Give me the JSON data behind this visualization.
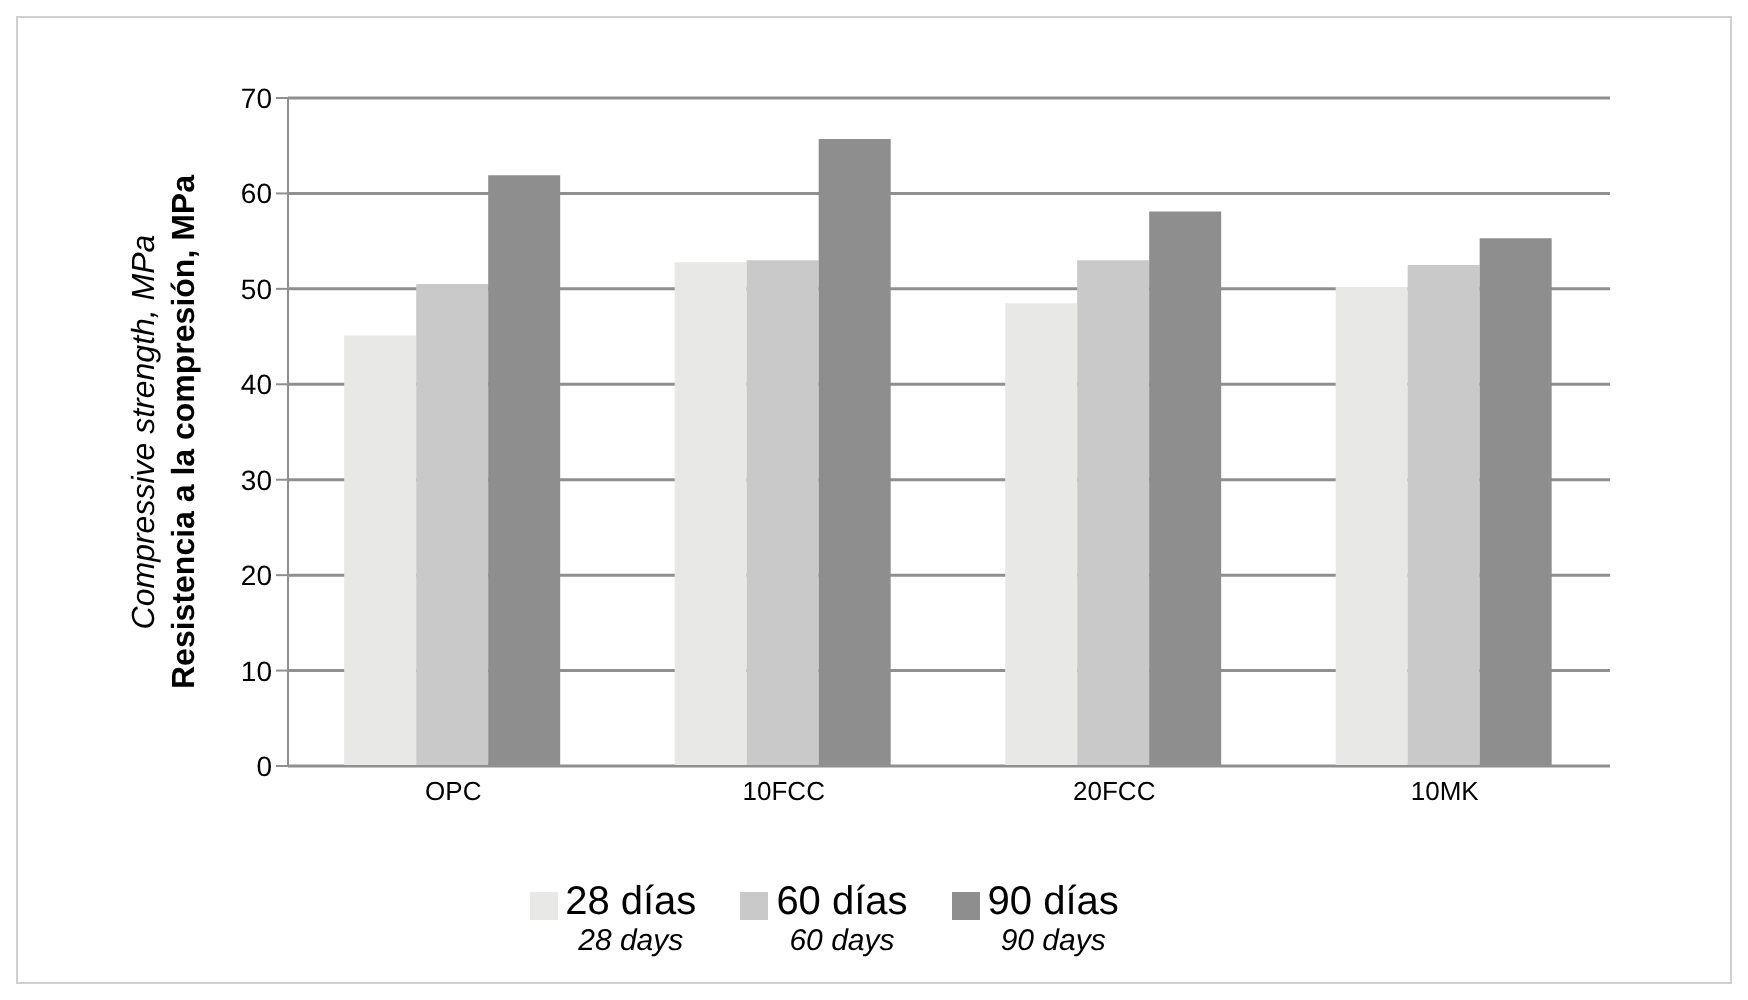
{
  "chart_data": {
    "type": "bar",
    "ylabel": "Compressive strength, MPa\nResistencia a la compresión, MPa",
    "categories": [
      "OPC",
      "10FCC",
      "20FCC",
      "10MK"
    ],
    "series": [
      {
        "name": "28 días\n28 days",
        "color": "#e8e8e6",
        "values": [
          45.1,
          52.8,
          48.5,
          50.2
        ]
      },
      {
        "name": "60 días\n60 days",
        "color": "#c9c9c9",
        "values": [
          50.5,
          53.0,
          53.0,
          52.5
        ]
      },
      {
        "name": "90 días\n90 days",
        "color": "#8e8e8e",
        "values": [
          61.9,
          65.7,
          58.1,
          55.3
        ]
      }
    ],
    "ylim": [
      0,
      70
    ],
    "yticks": [
      0,
      10,
      20,
      30,
      40,
      50,
      60,
      70
    ],
    "grid": "y",
    "legend": "bottom"
  }
}
